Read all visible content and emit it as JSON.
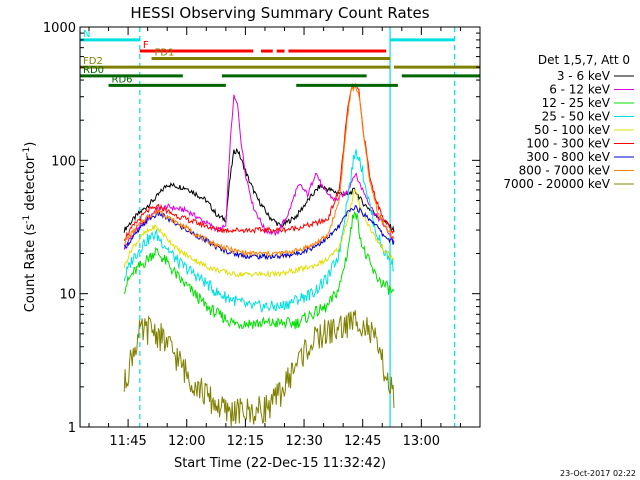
{
  "chart_data": {
    "type": "line",
    "title": "HESSI Observing Summary Count Rates",
    "xlabel": "Start Time (22-Dec-15 11:32:42)",
    "ylabel_pre": "Count Rate (s",
    "ylabel_sup": "-1",
    "ylabel_mid": " detector",
    "ylabel_sup2": "-1",
    "ylabel_post": ")",
    "y_scale": "log",
    "ylim": [
      1,
      1000
    ],
    "xlim": [
      "11:32:42",
      "13:15:00"
    ],
    "x_ticks": [
      "11:45",
      "12:00",
      "12:15",
      "12:30",
      "12:45",
      "13:00"
    ],
    "y_ticks": [
      "1",
      "10",
      "100",
      "1000"
    ],
    "legend": {
      "placement": "right",
      "header": "Det 1,5,7, Att 0",
      "entries": [
        {
          "label": "3 - 6 keV",
          "color": "#000000"
        },
        {
          "label": "6 - 12 keV",
          "color": "#e000e0"
        },
        {
          "label": "12 - 25 keV",
          "color": "#00e000"
        },
        {
          "label": "25 - 50 keV",
          "color": "#00e0e0"
        },
        {
          "label": "50 - 100 keV",
          "color": "#e0e000"
        },
        {
          "label": "100 - 300 keV",
          "color": "#ff0000"
        },
        {
          "label": "300 - 800 keV",
          "color": "#0000cc"
        },
        {
          "label": "800 - 7000 keV",
          "color": "#ff8000"
        },
        {
          "label": "7000 - 20000 keV",
          "color": "#808000"
        }
      ]
    },
    "series": [
      {
        "name": "3 - 6 keV",
        "color": "#000000",
        "points": [
          [
            "11:44",
            30
          ],
          [
            "11:47",
            38
          ],
          [
            "11:52",
            52
          ],
          [
            "11:55",
            66
          ],
          [
            "12:00",
            62
          ],
          [
            "12:05",
            50
          ],
          [
            "12:08",
            38
          ],
          [
            "12:10",
            36
          ],
          [
            "12:11",
            70
          ],
          [
            "12:12",
            115
          ],
          [
            "12:13",
            120
          ],
          [
            "12:14",
            100
          ],
          [
            "12:16",
            70
          ],
          [
            "12:18",
            52
          ],
          [
            "12:21",
            38
          ],
          [
            "12:24",
            32
          ],
          [
            "12:28",
            38
          ],
          [
            "12:31",
            50
          ],
          [
            "12:34",
            64
          ],
          [
            "12:38",
            58
          ],
          [
            "12:41",
            55
          ],
          [
            "12:43",
            60
          ],
          [
            "12:45",
            48
          ],
          [
            "12:48",
            40
          ],
          [
            "12:50",
            36
          ],
          [
            "12:53",
            30
          ]
        ]
      },
      {
        "name": "6 - 12 keV",
        "color": "#e000e0",
        "points": [
          [
            "11:44",
            22
          ],
          [
            "11:47",
            30
          ],
          [
            "11:52",
            42
          ],
          [
            "11:55",
            45
          ],
          [
            "12:00",
            42
          ],
          [
            "12:05",
            34
          ],
          [
            "12:08",
            30
          ],
          [
            "12:10",
            32
          ],
          [
            "12:11",
            120
          ],
          [
            "12:12",
            300
          ],
          [
            "12:13",
            260
          ],
          [
            "12:14",
            130
          ],
          [
            "12:15",
            80
          ],
          [
            "12:17",
            45
          ],
          [
            "12:20",
            30
          ],
          [
            "12:23",
            28
          ],
          [
            "12:26",
            40
          ],
          [
            "12:28",
            60
          ],
          [
            "12:29",
            65
          ],
          [
            "12:31",
            55
          ],
          [
            "12:33",
            82
          ],
          [
            "12:35",
            60
          ],
          [
            "12:38",
            50
          ],
          [
            "12:41",
            58
          ],
          [
            "12:43",
            80
          ],
          [
            "12:45",
            60
          ],
          [
            "12:48",
            40
          ],
          [
            "12:50",
            34
          ],
          [
            "12:53",
            25
          ]
        ]
      },
      {
        "name": "12 - 25 keV",
        "color": "#00e000",
        "points": [
          [
            "11:44",
            11
          ],
          [
            "11:46",
            14
          ],
          [
            "11:49",
            17
          ],
          [
            "11:52",
            21
          ],
          [
            "11:55",
            17
          ],
          [
            "11:58",
            13
          ],
          [
            "12:02",
            10
          ],
          [
            "12:05",
            8
          ],
          [
            "12:08",
            7
          ],
          [
            "12:12",
            6
          ],
          [
            "12:16",
            6
          ],
          [
            "12:20",
            6
          ],
          [
            "12:24",
            6
          ],
          [
            "12:28",
            6
          ],
          [
            "12:32",
            7
          ],
          [
            "12:36",
            8
          ],
          [
            "12:39",
            11
          ],
          [
            "12:41",
            20
          ],
          [
            "12:43",
            45
          ],
          [
            "12:45",
            22
          ],
          [
            "12:48",
            14
          ],
          [
            "12:50",
            12
          ],
          [
            "12:53",
            10
          ]
        ]
      },
      {
        "name": "25 - 50 keV",
        "color": "#00e0e0",
        "points": [
          [
            "11:44",
            13
          ],
          [
            "11:46",
            18
          ],
          [
            "11:49",
            24
          ],
          [
            "11:52",
            28
          ],
          [
            "11:55",
            22
          ],
          [
            "11:58",
            17
          ],
          [
            "12:02",
            14
          ],
          [
            "12:05",
            12
          ],
          [
            "12:08",
            10
          ],
          [
            "12:12",
            9
          ],
          [
            "12:16",
            8
          ],
          [
            "12:20",
            8
          ],
          [
            "12:24",
            8
          ],
          [
            "12:28",
            9
          ],
          [
            "12:32",
            10
          ],
          [
            "12:36",
            13
          ],
          [
            "12:39",
            20
          ],
          [
            "12:41",
            50
          ],
          [
            "12:43",
            115
          ],
          [
            "12:44",
            110
          ],
          [
            "12:46",
            60
          ],
          [
            "12:48",
            32
          ],
          [
            "12:50",
            22
          ],
          [
            "12:53",
            16
          ]
        ]
      },
      {
        "name": "50 - 100 keV",
        "color": "#e0e000",
        "points": [
          [
            "11:44",
            16
          ],
          [
            "11:46",
            22
          ],
          [
            "11:49",
            28
          ],
          [
            "11:52",
            32
          ],
          [
            "11:55",
            26
          ],
          [
            "11:58",
            21
          ],
          [
            "12:02",
            18
          ],
          [
            "12:05",
            16
          ],
          [
            "12:08",
            15
          ],
          [
            "12:12",
            14
          ],
          [
            "12:16",
            14
          ],
          [
            "12:20",
            14
          ],
          [
            "12:24",
            14
          ],
          [
            "12:28",
            15
          ],
          [
            "12:32",
            16
          ],
          [
            "12:36",
            18
          ],
          [
            "12:39",
            22
          ],
          [
            "12:41",
            35
          ],
          [
            "12:43",
            60
          ],
          [
            "12:45",
            40
          ],
          [
            "12:48",
            27
          ],
          [
            "12:50",
            22
          ],
          [
            "12:53",
            18
          ]
        ]
      },
      {
        "name": "100 - 300 keV",
        "color": "#ff0000",
        "points": [
          [
            "11:44",
            26
          ],
          [
            "11:47",
            34
          ],
          [
            "11:50",
            42
          ],
          [
            "11:53",
            45
          ],
          [
            "11:56",
            40
          ],
          [
            "12:00",
            36
          ],
          [
            "12:04",
            33
          ],
          [
            "12:08",
            30
          ],
          [
            "12:12",
            30
          ],
          [
            "12:16",
            30
          ],
          [
            "12:20",
            30
          ],
          [
            "12:24",
            30
          ],
          [
            "12:28",
            31
          ],
          [
            "12:32",
            33
          ],
          [
            "12:36",
            36
          ],
          [
            "12:39",
            60
          ],
          [
            "12:41",
            220
          ],
          [
            "12:42",
            340
          ],
          [
            "12:43",
            370
          ],
          [
            "12:44",
            330
          ],
          [
            "12:45",
            180
          ],
          [
            "12:47",
            70
          ],
          [
            "12:49",
            45
          ],
          [
            "12:51",
            34
          ],
          [
            "12:53",
            28
          ]
        ]
      },
      {
        "name": "300 - 800 keV",
        "color": "#0000cc",
        "points": [
          [
            "11:44",
            22
          ],
          [
            "11:47",
            28
          ],
          [
            "11:50",
            36
          ],
          [
            "11:53",
            40
          ],
          [
            "11:56",
            35
          ],
          [
            "12:00",
            30
          ],
          [
            "12:04",
            26
          ],
          [
            "12:08",
            22
          ],
          [
            "12:12",
            20
          ],
          [
            "12:16",
            19
          ],
          [
            "12:20",
            19
          ],
          [
            "12:24",
            19
          ],
          [
            "12:28",
            20
          ],
          [
            "12:32",
            22
          ],
          [
            "12:36",
            26
          ],
          [
            "12:39",
            32
          ],
          [
            "12:41",
            40
          ],
          [
            "12:43",
            45
          ],
          [
            "12:45",
            40
          ],
          [
            "12:48",
            34
          ],
          [
            "12:50",
            28
          ],
          [
            "12:53",
            24
          ]
        ]
      },
      {
        "name": "800 - 7000 keV",
        "color": "#ff8000",
        "points": [
          [
            "11:44",
            24
          ],
          [
            "11:47",
            31
          ],
          [
            "11:50",
            38
          ],
          [
            "11:53",
            42
          ],
          [
            "11:56",
            36
          ],
          [
            "12:00",
            31
          ],
          [
            "12:04",
            26
          ],
          [
            "12:08",
            23
          ],
          [
            "12:12",
            21
          ],
          [
            "12:16",
            20
          ],
          [
            "12:20",
            20
          ],
          [
            "12:24",
            20
          ],
          [
            "12:28",
            21
          ],
          [
            "12:32",
            23
          ],
          [
            "12:36",
            27
          ],
          [
            "12:39",
            50
          ],
          [
            "12:41",
            200
          ],
          [
            "12:42",
            330
          ],
          [
            "12:43",
            360
          ],
          [
            "12:44",
            320
          ],
          [
            "12:45",
            170
          ],
          [
            "12:47",
            65
          ],
          [
            "12:49",
            40
          ],
          [
            "12:51",
            31
          ],
          [
            "12:53",
            26
          ]
        ]
      },
      {
        "name": "7000 - 20000 keV",
        "color": "#808000",
        "points": [
          [
            "11:44",
            2
          ],
          [
            "11:46",
            3.5
          ],
          [
            "11:48",
            5
          ],
          [
            "11:51",
            5.5
          ],
          [
            "11:54",
            4.5
          ],
          [
            "11:57",
            3.5
          ],
          [
            "12:00",
            2.5
          ],
          [
            "12:03",
            2
          ],
          [
            "12:06",
            1.6
          ],
          [
            "12:10",
            1.3
          ],
          [
            "12:14",
            1.3
          ],
          [
            "12:18",
            1.3
          ],
          [
            "12:22",
            1.5
          ],
          [
            "12:25",
            2
          ],
          [
            "12:28",
            3
          ],
          [
            "12:31",
            4
          ],
          [
            "12:35",
            5
          ],
          [
            "12:39",
            5.5
          ],
          [
            "12:42",
            6
          ],
          [
            "12:44",
            6.5
          ],
          [
            "12:46",
            5.5
          ],
          [
            "12:48",
            4.5
          ],
          [
            "12:50",
            3
          ],
          [
            "12:52",
            2
          ],
          [
            "12:53",
            1.6
          ]
        ]
      }
    ],
    "vertical_markers": [
      {
        "time": "11:32:42",
        "color": "#00e0e0",
        "style": "solid"
      },
      {
        "time": "11:48:00",
        "color": "#00e0e0",
        "style": "dashed"
      },
      {
        "time": "12:52:00",
        "color": "#00e0e0",
        "style": "solid"
      },
      {
        "time": "13:08:30",
        "color": "#00e0e0",
        "style": "dashed"
      }
    ],
    "flag_rows": [
      {
        "label": "N",
        "color": "#00e0e0",
        "y": 800,
        "segments": [
          [
            "11:32:42",
            "11:48:00"
          ],
          [
            "12:52:00",
            "13:08:30"
          ]
        ]
      },
      {
        "label": "F",
        "color": "#ff0000",
        "y": 660,
        "segments": [
          [
            "11:48:00",
            "12:17:00"
          ],
          [
            "12:19:00",
            "12:22:00"
          ],
          [
            "12:23:00",
            "12:25:00"
          ],
          [
            "12:26:00",
            "12:51:00"
          ]
        ]
      },
      {
        "label": "FD1",
        "color": "#808000",
        "y": 580,
        "segments": [
          [
            "11:51:00",
            "12:52:00"
          ]
        ]
      },
      {
        "label": "FD2",
        "color": "#808000",
        "y": 500,
        "segments": [
          [
            "11:32:42",
            "12:52:00"
          ],
          [
            "12:53:00",
            "13:15:00"
          ]
        ]
      },
      {
        "label": "RD0",
        "color": "#006600",
        "y": 430,
        "segments": [
          [
            "11:32:42",
            "11:59:00"
          ],
          [
            "12:09:00",
            "12:46:00"
          ],
          [
            "12:55:00",
            "13:15:00"
          ]
        ]
      },
      {
        "label": "RD6",
        "color": "#006600",
        "y": 365,
        "segments": [
          [
            "11:40:00",
            "12:10:00"
          ],
          [
            "12:28:00",
            "12:54:00"
          ]
        ]
      }
    ]
  },
  "footer": {
    "timestamp": "23-Oct-2017 02:22"
  }
}
